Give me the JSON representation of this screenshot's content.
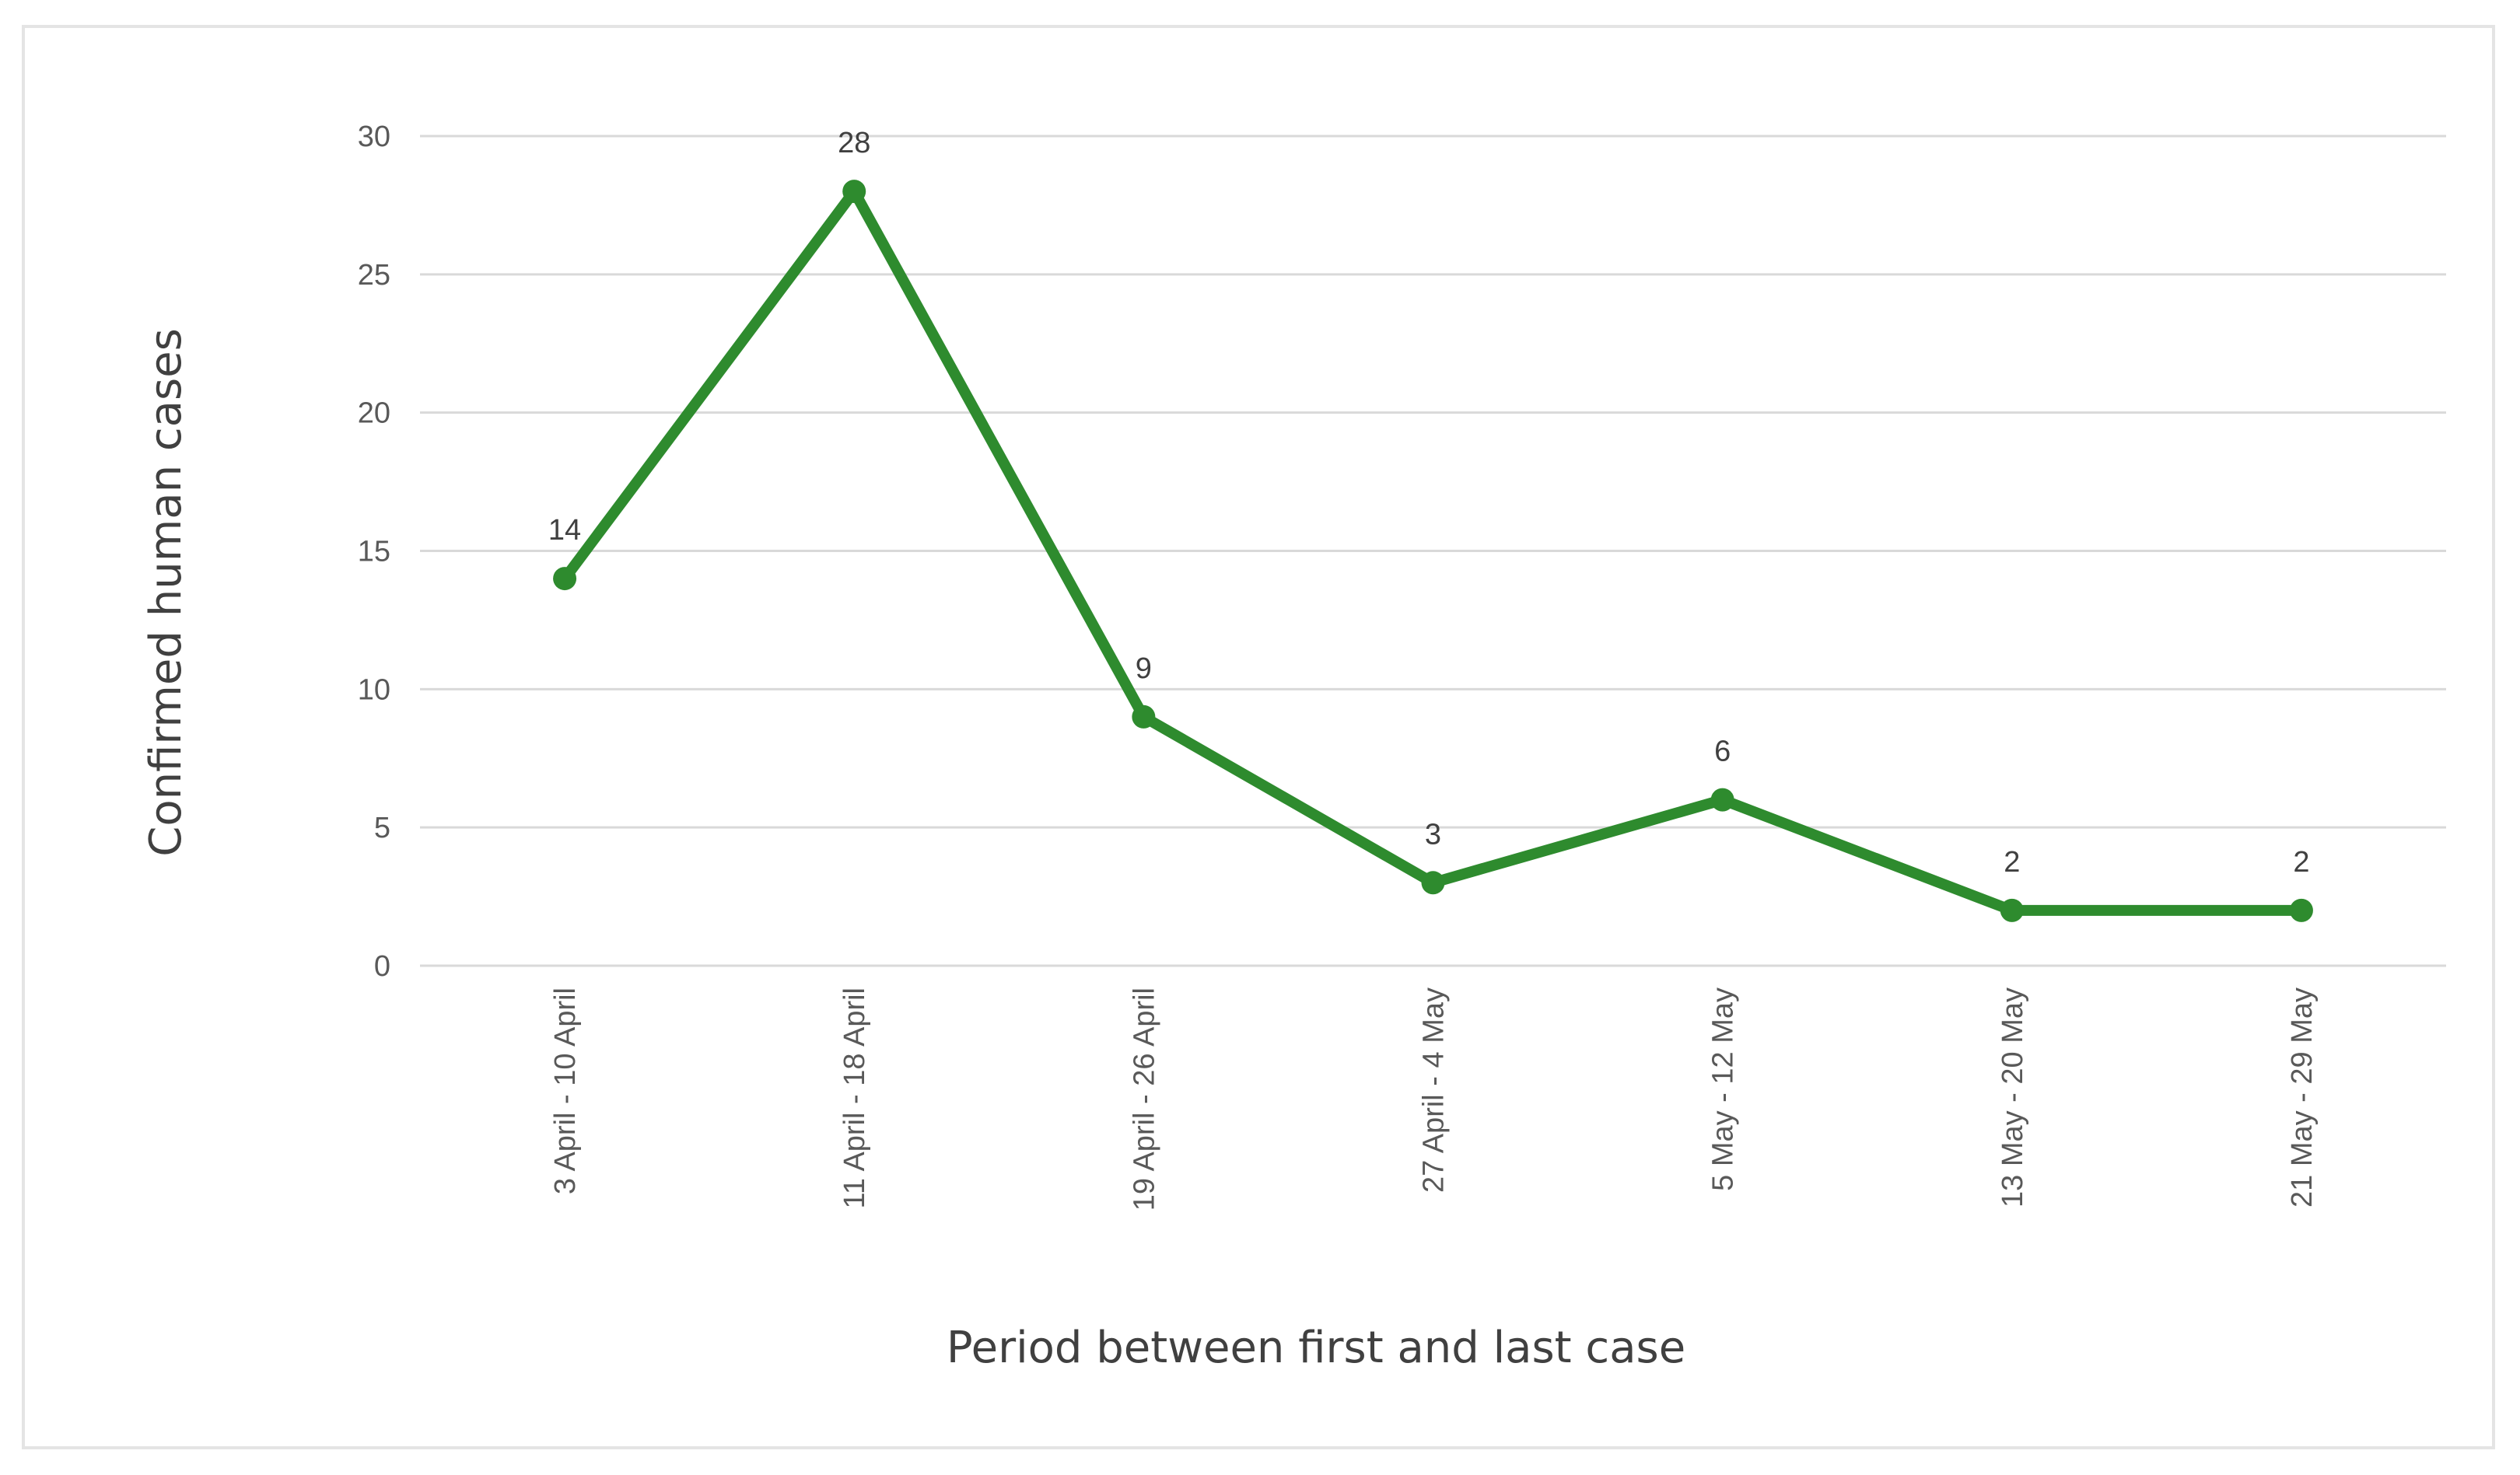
{
  "chart_data": {
    "type": "line",
    "title": "",
    "xlabel": "Period between first and last case",
    "ylabel": "Confirmed human cases",
    "categories": [
      "3 April - 10 April",
      "11 April - 18 April",
      "19 April - 26 April",
      "27 April - 4 May",
      "5 May - 12 May",
      "13 May - 20 May",
      "21 May - 29 May"
    ],
    "series": [
      {
        "name": "Confirmed human cases",
        "values": [
          14,
          28,
          9,
          3,
          6,
          2,
          2
        ],
        "color": "#2e8b2e"
      }
    ],
    "ylim": [
      0,
      30
    ],
    "yticks": [
      0,
      5,
      10,
      15,
      20,
      25,
      30
    ],
    "grid": true,
    "data_labels": true,
    "legend": "none"
  }
}
